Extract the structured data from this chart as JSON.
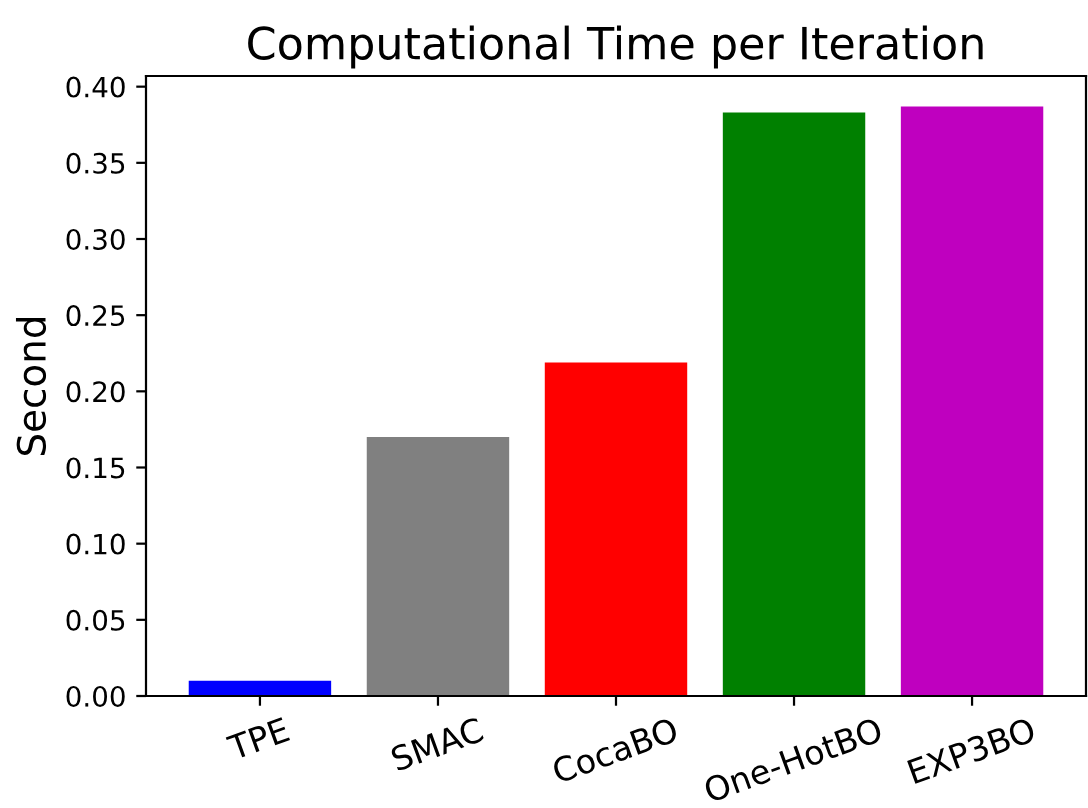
{
  "chart_data": {
    "type": "bar",
    "title": "Computational Time per Iteration",
    "ylabel": "Second",
    "categories": [
      "TPE",
      "SMAC",
      "CocaBO",
      "One-HotBO",
      "EXP3BO"
    ],
    "values": [
      0.01,
      0.17,
      0.219,
      0.383,
      0.387
    ],
    "colors": [
      "#0000ff",
      "#808080",
      "#ff0000",
      "#008000",
      "#bf00bf"
    ],
    "ylim": [
      0,
      0.407
    ],
    "yticks": [
      {
        "value": 0,
        "label": "0.00"
      },
      {
        "value": 0.05,
        "label": "0.05"
      },
      {
        "value": 0.1,
        "label": "0.10"
      },
      {
        "value": 0.15,
        "label": "0.15"
      },
      {
        "value": 0.2,
        "label": "0.20"
      },
      {
        "value": 0.25,
        "label": "0.25"
      },
      {
        "value": 0.3,
        "label": "0.30"
      },
      {
        "value": 0.35,
        "label": "0.35"
      },
      {
        "value": 0.4,
        "label": "0.40"
      }
    ],
    "grid": false
  }
}
